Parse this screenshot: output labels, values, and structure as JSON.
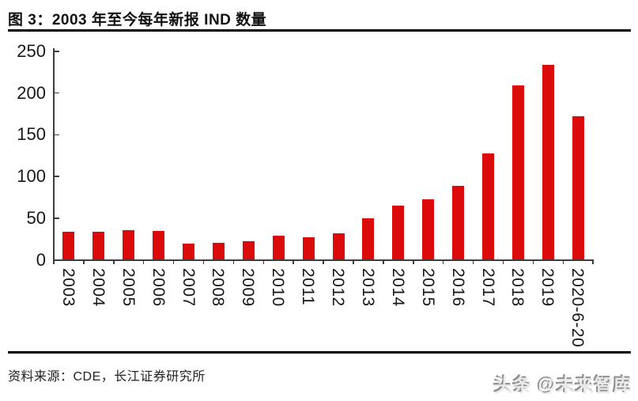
{
  "figure": {
    "title": "图  3：2003 年至今每年新报 IND 数量",
    "source": "资料来源：CDE，长江证券研究所",
    "watermark": "头条 @未来智库"
  },
  "chart_data": {
    "type": "bar",
    "title": "2003 年至今每年新报 IND 数量",
    "categories": [
      "2003",
      "2004",
      "2005",
      "2006",
      "2007",
      "2008",
      "2009",
      "2010",
      "2011",
      "2012",
      "2013",
      "2014",
      "2015",
      "2016",
      "2017",
      "2018",
      "2019",
      "2020-6-20"
    ],
    "values": [
      34,
      34,
      36,
      35,
      19,
      20,
      22,
      29,
      27,
      32,
      50,
      65,
      73,
      89,
      128,
      209,
      234,
      172
    ],
    "xlabel": "",
    "ylabel": "",
    "ylim": [
      0,
      250
    ],
    "yticks": [
      0,
      50,
      100,
      150,
      200,
      250
    ],
    "x_label_rotation_deg": 90,
    "grid": false,
    "legend": "none",
    "bar_color": "#dc0b0b",
    "axis_color": "#3c3c3c"
  }
}
